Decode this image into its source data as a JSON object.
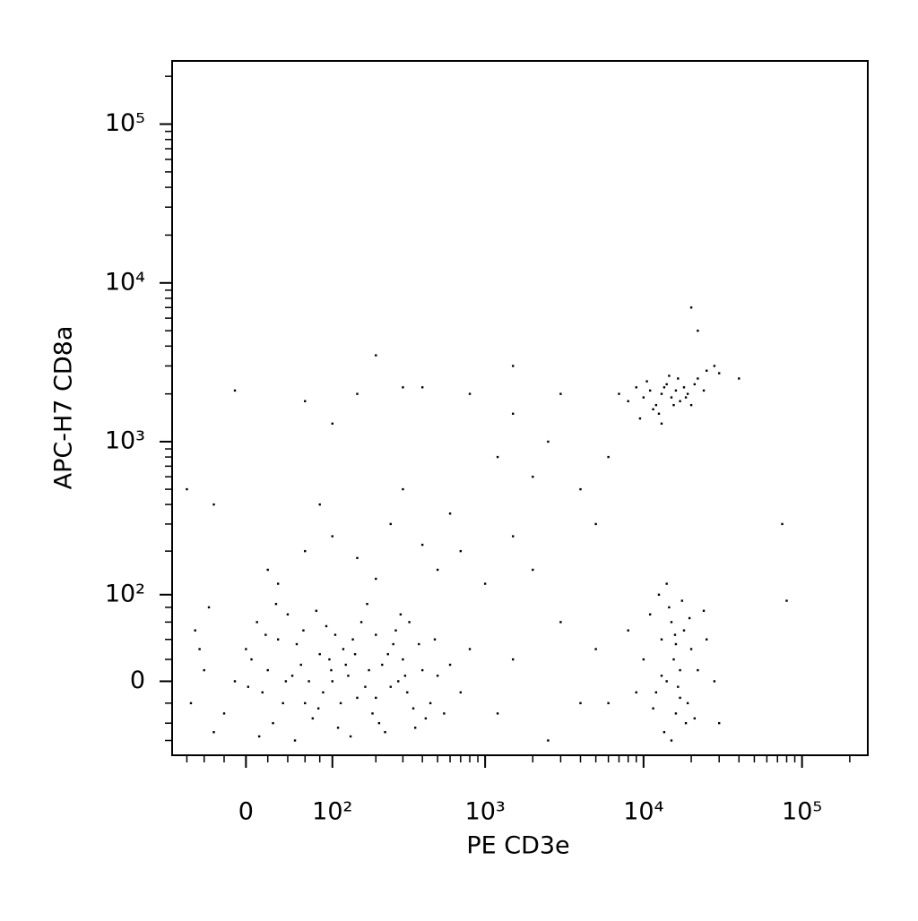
{
  "chart_data": {
    "type": "scatter",
    "xlabel": "PE CD3e",
    "ylabel": "APC-H7 CD8a",
    "xscale": "biexponential",
    "yscale": "biexponential",
    "xlim": [
      -80,
      260000
    ],
    "ylim": [
      -80,
      250000
    ],
    "xticks": [
      0,
      {
        "value": 100,
        "label": "10²"
      },
      {
        "value": 1000,
        "label": "10³"
      },
      {
        "value": 10000,
        "label": "10⁴"
      },
      {
        "value": 100000,
        "label": "10⁵"
      }
    ],
    "yticks": [
      0,
      {
        "value": 100,
        "label": "10²"
      },
      {
        "value": 1000,
        "label": "10³"
      },
      {
        "value": 10000,
        "label": "10⁴"
      },
      {
        "value": 100000,
        "label": "10⁵"
      }
    ],
    "xminor_ticks": [
      -60,
      -40,
      -20,
      20,
      40,
      60,
      80,
      200,
      300,
      400,
      500,
      600,
      700,
      800,
      900,
      2000,
      3000,
      4000,
      5000,
      6000,
      7000,
      8000,
      9000,
      20000,
      30000,
      40000,
      50000,
      60000,
      70000,
      80000,
      90000,
      200000
    ],
    "yminor_ticks": [
      -60,
      -40,
      -20,
      20,
      40,
      60,
      80,
      200,
      300,
      400,
      500,
      600,
      700,
      800,
      900,
      2000,
      3000,
      4000,
      5000,
      6000,
      7000,
      8000,
      9000,
      20000,
      30000,
      40000,
      50000,
      60000,
      70000,
      80000,
      90000,
      200000
    ],
    "color": "#000000",
    "x": [
      -40,
      -20,
      5,
      15,
      30,
      45,
      60,
      80,
      100,
      120,
      150,
      180,
      200,
      250,
      300,
      350,
      400,
      -50,
      -30,
      10,
      25,
      40,
      55,
      70,
      90,
      110,
      130,
      160,
      190,
      220,
      270,
      320,
      380,
      450,
      500,
      -10,
      0,
      20,
      35,
      50,
      65,
      85,
      95,
      105,
      115,
      125,
      140,
      170,
      210,
      240,
      280,
      330,
      420,
      600,
      -55,
      -35,
      12,
      28,
      48,
      75,
      135,
      175,
      230,
      290,
      360,
      480,
      700,
      800,
      -45,
      2,
      18,
      38,
      58,
      78,
      98,
      145,
      200,
      260,
      310,
      550,
      20,
      60,
      100,
      150,
      250,
      400,
      600,
      80,
      300,
      500,
      -30,
      700,
      1000,
      1500,
      30,
      200,
      1200,
      1500,
      2000,
      2500,
      3000,
      4000,
      5000,
      6000,
      2000,
      3000,
      4000,
      5000,
      1500,
      1200,
      2500,
      800,
      300,
      150,
      100,
      60,
      -10,
      -60,
      400,
      200,
      1500,
      20000,
      75000,
      80000,
      40000,
      22000,
      8000,
      9000,
      10000,
      11000,
      12000,
      13000,
      14000,
      15000,
      16000,
      17000,
      18000,
      19000,
      20000,
      22000,
      25000,
      28000,
      12500,
      14500,
      10500,
      11500,
      13500,
      15500,
      9500,
      16500,
      18500,
      21000,
      7000,
      24000,
      30000,
      13000,
      10000,
      12000,
      13000,
      14000,
      15000,
      16000,
      17000,
      18000,
      19000,
      20000,
      11000,
      13500,
      14500,
      15500,
      16500,
      17500,
      18500,
      22000,
      25000,
      9000,
      12500,
      14000,
      15000,
      16000,
      17000,
      19500,
      21000,
      24000,
      28000,
      8000,
      6000,
      30000,
      11500,
      13000,
      15800
    ],
    "values": [
      10,
      -30,
      20,
      -10,
      40,
      5,
      -20,
      25,
      0,
      30,
      -15,
      10,
      45,
      -5,
      20,
      -25,
      10,
      50,
      -50,
      60,
      -40,
      70,
      15,
      -35,
      55,
      -45,
      5,
      60,
      -30,
      15,
      50,
      -10,
      35,
      -20,
      5,
      0,
      30,
      10,
      -20,
      35,
      0,
      -10,
      20,
      45,
      -20,
      15,
      40,
      -5,
      -40,
      25,
      0,
      60,
      -35,
      15,
      -20,
      80,
      -55,
      85,
      -60,
      75,
      -55,
      85,
      -50,
      70,
      -45,
      40,
      -10,
      30,
      30,
      -5,
      45,
      0,
      50,
      -25,
      10,
      25,
      -15,
      35,
      5,
      -30,
      150,
      200,
      250,
      180,
      300,
      220,
      350,
      400,
      500,
      150,
      400,
      200,
      120,
      250,
      120,
      130,
      800,
      1500,
      600,
      1000,
      2000,
      500,
      300,
      800,
      150,
      60,
      -20,
      30,
      20,
      -30,
      -60,
      2000,
      2200,
      2000,
      1300,
      1800,
      2100,
      500,
      2200,
      3500,
      3000,
      7000,
      300,
      90,
      2500,
      5000,
      1800,
      2200,
      1900,
      2100,
      1700,
      2000,
      2300,
      1900,
      2100,
      1800,
      2200,
      2000,
      1700,
      2500,
      2800,
      3000,
      1500,
      2600,
      2400,
      1600,
      2200,
      1700,
      1400,
      2500,
      1900,
      2300,
      2000,
      2100,
      2700,
      1300,
      20,
      -10,
      40,
      0,
      60,
      -30,
      10,
      50,
      -20,
      30,
      70,
      -50,
      80,
      20,
      -5,
      90,
      -40,
      10,
      40,
      -10,
      100,
      120,
      -60,
      35,
      -15,
      65,
      -35,
      75,
      0,
      50,
      -20,
      -40,
      -25,
      5,
      45
    ]
  }
}
